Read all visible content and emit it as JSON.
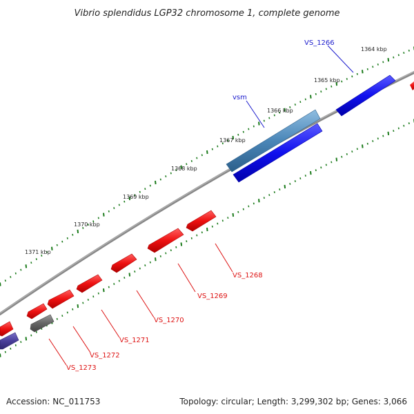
{
  "title": "Vibrio splendidus LGP32 chromosome 1, complete genome",
  "footer": {
    "accession": "Accession: NC_011753",
    "topology": "Topology: circular; Length: 3,299,302 bp; Genes: 3,066"
  },
  "scale_labels": [
    "1364 kbp",
    "1365 kbp",
    "1366 kbp",
    "1367 kbp",
    "1368 kbp",
    "1369 kbp",
    "1370 kbp",
    "1371 kbp"
  ],
  "gene_labels": [
    {
      "text": "VS_1266",
      "color": "#1a1acc"
    },
    {
      "text": "vsm",
      "color": "#1a1acc"
    },
    {
      "text": "VS_1268",
      "color": "#dd1111"
    },
    {
      "text": "VS_1269",
      "color": "#dd1111"
    },
    {
      "text": "VS_1270",
      "color": "#dd1111"
    },
    {
      "text": "VS_1271",
      "color": "#dd1111"
    },
    {
      "text": "VS_1272",
      "color": "#dd1111"
    },
    {
      "text": "VS_1273",
      "color": "#dd1111"
    }
  ],
  "colors": {
    "forward_gene": "#1010ee",
    "forward_gene_highlight": "#4a86b8",
    "reverse_gene": "#ee1111",
    "other_gene": "#666666",
    "edge_gene": "#4a3f9a",
    "backbone": "#888888",
    "tick": "#1a7a1a"
  }
}
